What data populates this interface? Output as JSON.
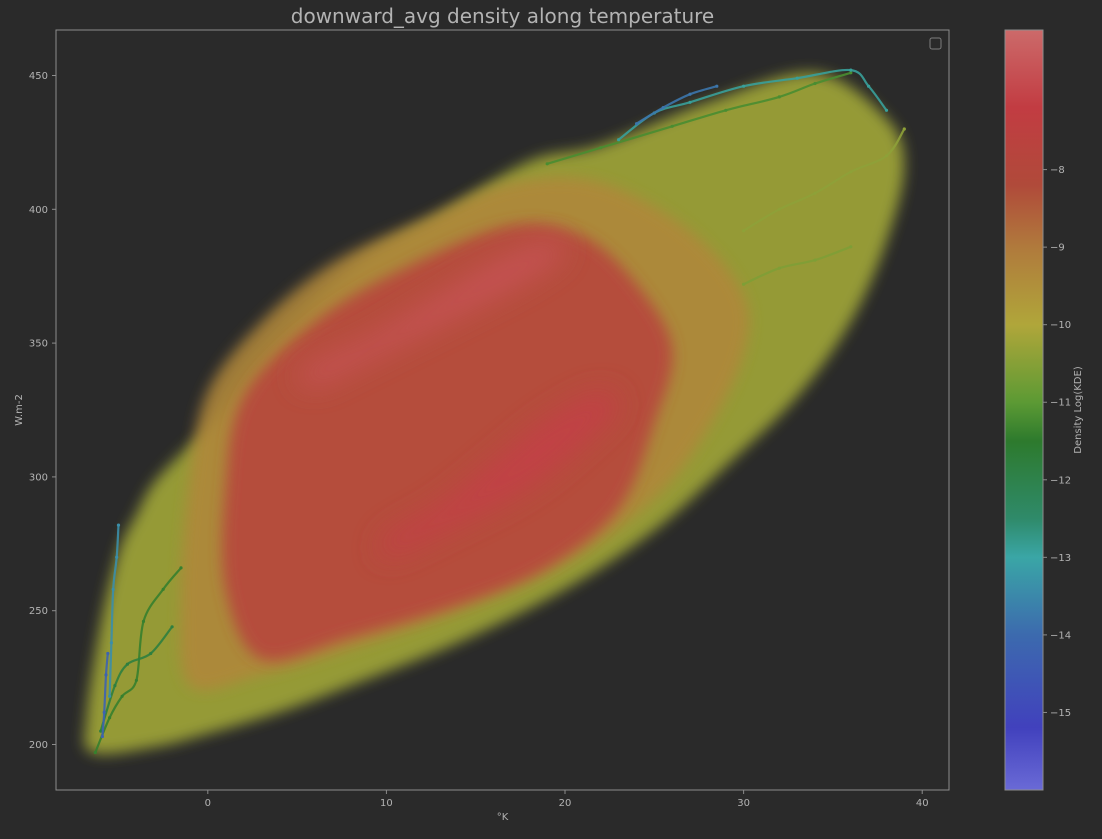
{
  "chart_data": {
    "type": "scatter",
    "title": "downward_avg density along temperature",
    "xlabel": "°K",
    "ylabel": "W.m-2",
    "xlim": [
      -8.5,
      41.5
    ],
    "ylim": [
      183,
      467
    ],
    "x_ticks": [
      0,
      10,
      20,
      30,
      40
    ],
    "y_ticks": [
      200,
      250,
      300,
      350,
      400,
      450
    ],
    "grid": false,
    "legend": "top-right, empty",
    "colorbar": {
      "label": "Density Log(KDE)",
      "range": [
        -16.0,
        -6.2
      ],
      "ticks": [
        -8,
        -9,
        -10,
        -11,
        -12,
        -13,
        -14,
        -15
      ],
      "colormap": [
        {
          "value": -16.0,
          "color": "#6a6ad6"
        },
        {
          "value": -15.2,
          "color": "#4141bd"
        },
        {
          "value": -14.0,
          "color": "#3c6aae"
        },
        {
          "value": -13.0,
          "color": "#3aa6a6"
        },
        {
          "value": -12.5,
          "color": "#2f8a6a"
        },
        {
          "value": -11.5,
          "color": "#2d7a2d"
        },
        {
          "value": -11.0,
          "color": "#5c9a34"
        },
        {
          "value": -10.0,
          "color": "#b0a63a"
        },
        {
          "value": -9.0,
          "color": "#b07a3c"
        },
        {
          "value": -8.2,
          "color": "#b04a3a"
        },
        {
          "value": -7.2,
          "color": "#c23c42"
        },
        {
          "value": -6.2,
          "color": "#cc6a6a"
        }
      ]
    },
    "density_regions": [
      {
        "name": "outer-envelope",
        "level": -10.2,
        "points": [
          [
            -6.5,
            197
          ],
          [
            -3,
            199
          ],
          [
            0,
            204
          ],
          [
            4,
            212
          ],
          [
            8,
            222
          ],
          [
            14,
            238
          ],
          [
            20,
            258
          ],
          [
            25,
            280
          ],
          [
            29,
            304
          ],
          [
            33,
            330
          ],
          [
            36,
            358
          ],
          [
            38,
            388
          ],
          [
            39,
            416
          ],
          [
            38,
            434
          ],
          [
            34,
            451
          ],
          [
            28,
            440
          ],
          [
            22,
            424
          ],
          [
            18,
            418
          ],
          [
            13,
            398
          ],
          [
            8,
            378
          ],
          [
            3,
            345
          ],
          [
            0,
            318
          ],
          [
            -1,
            312
          ],
          [
            -3,
            298
          ],
          [
            -4,
            286
          ],
          [
            -5,
            272
          ],
          [
            -6,
            245
          ],
          [
            -6.8,
            210
          ]
        ]
      },
      {
        "name": "main-body",
        "level": -9.3,
        "points": [
          [
            -1,
            222
          ],
          [
            3,
            226
          ],
          [
            8,
            236
          ],
          [
            14,
            250
          ],
          [
            20,
            268
          ],
          [
            25,
            292
          ],
          [
            28,
            318
          ],
          [
            30,
            346
          ],
          [
            30,
            368
          ],
          [
            27,
            392
          ],
          [
            22,
            410
          ],
          [
            17,
            410
          ],
          [
            12,
            396
          ],
          [
            7,
            380
          ],
          [
            3,
            358
          ],
          [
            0,
            332
          ],
          [
            -1,
            300
          ],
          [
            -1.5,
            255
          ]
        ]
      },
      {
        "name": "core",
        "level": -7.8,
        "points": [
          [
            3,
            232
          ],
          [
            8,
            240
          ],
          [
            14,
            252
          ],
          [
            19,
            266
          ],
          [
            23,
            288
          ],
          [
            25,
            320
          ],
          [
            26,
            348
          ],
          [
            24,
            372
          ],
          [
            21,
            390
          ],
          [
            17,
            394
          ],
          [
            11,
            378
          ],
          [
            6,
            358
          ],
          [
            2,
            330
          ],
          [
            1,
            296
          ],
          [
            1,
            258
          ]
        ]
      },
      {
        "name": "peak-upper",
        "level": -6.7,
        "points": [
          [
            5,
            338
          ],
          [
            7,
            346
          ],
          [
            9,
            352
          ],
          [
            11,
            360
          ],
          [
            13,
            368
          ],
          [
            16,
            380
          ],
          [
            19,
            388
          ],
          [
            20,
            384
          ],
          [
            18,
            374
          ],
          [
            14,
            360
          ],
          [
            11,
            350
          ],
          [
            8,
            340
          ],
          [
            6,
            334
          ]
        ]
      },
      {
        "name": "peak-lower",
        "level": -7.1,
        "points": [
          [
            10,
            270
          ],
          [
            14,
            282
          ],
          [
            18,
            296
          ],
          [
            21,
            312
          ],
          [
            23,
            326
          ],
          [
            22,
            332
          ],
          [
            19,
            322
          ],
          [
            16,
            306
          ],
          [
            13,
            290
          ],
          [
            10,
            278
          ]
        ]
      }
    ],
    "fringe_series": [
      {
        "name": "cold-tail",
        "level": -11.4,
        "points": [
          [
            -6.3,
            197
          ],
          [
            -5.5,
            210
          ],
          [
            -4.8,
            218
          ],
          [
            -4,
            224
          ],
          [
            -3.6,
            246
          ],
          [
            -2.5,
            258
          ],
          [
            -1.5,
            266
          ]
        ]
      },
      {
        "name": "cold-tail-2",
        "level": -11.8,
        "points": [
          [
            -6,
            205
          ],
          [
            -5.2,
            222
          ],
          [
            -4.5,
            230
          ],
          [
            -3.2,
            234
          ],
          [
            -2,
            244
          ]
        ]
      },
      {
        "name": "cold-spike",
        "level": -13.4,
        "points": [
          [
            -5.5,
            218
          ],
          [
            -5.4,
            238
          ],
          [
            -5.3,
            258
          ],
          [
            -5.1,
            270
          ],
          [
            -5,
            282
          ]
        ]
      },
      {
        "name": "cold-dots",
        "level": -14.2,
        "points": [
          [
            -5.9,
            203
          ],
          [
            -5.8,
            212
          ],
          [
            -5.7,
            226
          ],
          [
            -5.6,
            234
          ]
        ]
      },
      {
        "name": "top-edge",
        "level": -11.2,
        "points": [
          [
            19,
            417
          ],
          [
            22,
            423
          ],
          [
            26,
            431
          ],
          [
            29,
            437
          ],
          [
            32,
            442
          ],
          [
            34,
            447
          ],
          [
            36,
            451
          ]
        ]
      },
      {
        "name": "top-dots",
        "level": -12.9,
        "points": [
          [
            23,
            426
          ],
          [
            25,
            436
          ],
          [
            27,
            440
          ],
          [
            30,
            446
          ],
          [
            33,
            449
          ],
          [
            36,
            452
          ],
          [
            37,
            446
          ],
          [
            38,
            437
          ]
        ]
      },
      {
        "name": "top-far",
        "level": -13.8,
        "points": [
          [
            24,
            432
          ],
          [
            25.5,
            438
          ],
          [
            27,
            443
          ],
          [
            28.5,
            446
          ]
        ]
      },
      {
        "name": "right-lobe",
        "level": -10.4,
        "points": [
          [
            30,
            392
          ],
          [
            32,
            400
          ],
          [
            34,
            406
          ],
          [
            36,
            414
          ],
          [
            38,
            420
          ],
          [
            39,
            430
          ]
        ]
      },
      {
        "name": "right-lobe-2",
        "level": -10.6,
        "points": [
          [
            30,
            372
          ],
          [
            32,
            378
          ],
          [
            34,
            381
          ],
          [
            36,
            386
          ]
        ]
      }
    ]
  }
}
